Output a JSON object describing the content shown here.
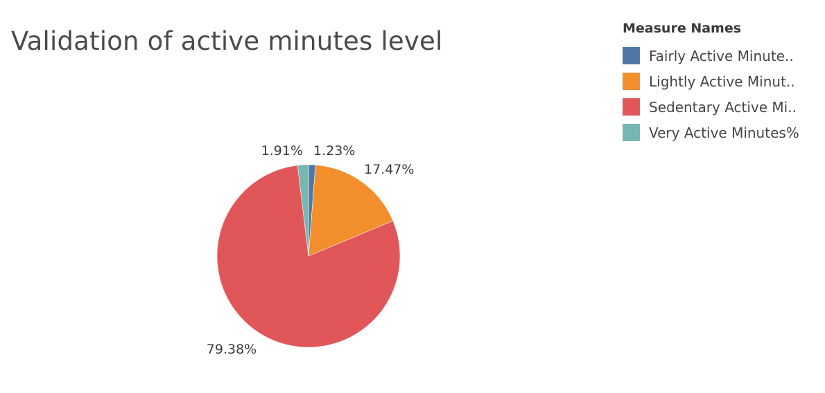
{
  "chart_data": {
    "type": "pie",
    "title": "Validation of active minutes level",
    "legend": {
      "title": "Measure Names",
      "placement": "top-right",
      "items": [
        {
          "label": "Fairly Active Minute..",
          "color": "#4e79a7"
        },
        {
          "label": "Lightly Active Minut..",
          "color": "#f28e2b"
        },
        {
          "label": "Sedentary Active Mi..",
          "color": "#e15759"
        },
        {
          "label": "Very Active Minutes%",
          "color": "#76b7b2"
        }
      ]
    },
    "slices": [
      {
        "label": "1.23%",
        "value": 1.23,
        "color": "#4e79a7"
      },
      {
        "label": "17.47%",
        "value": 17.47,
        "color": "#f28e2b"
      },
      {
        "label": "79.38%",
        "value": 79.38,
        "color": "#e15759"
      },
      {
        "label": "1.91%",
        "value": 1.91,
        "color": "#76b7b2"
      }
    ]
  }
}
